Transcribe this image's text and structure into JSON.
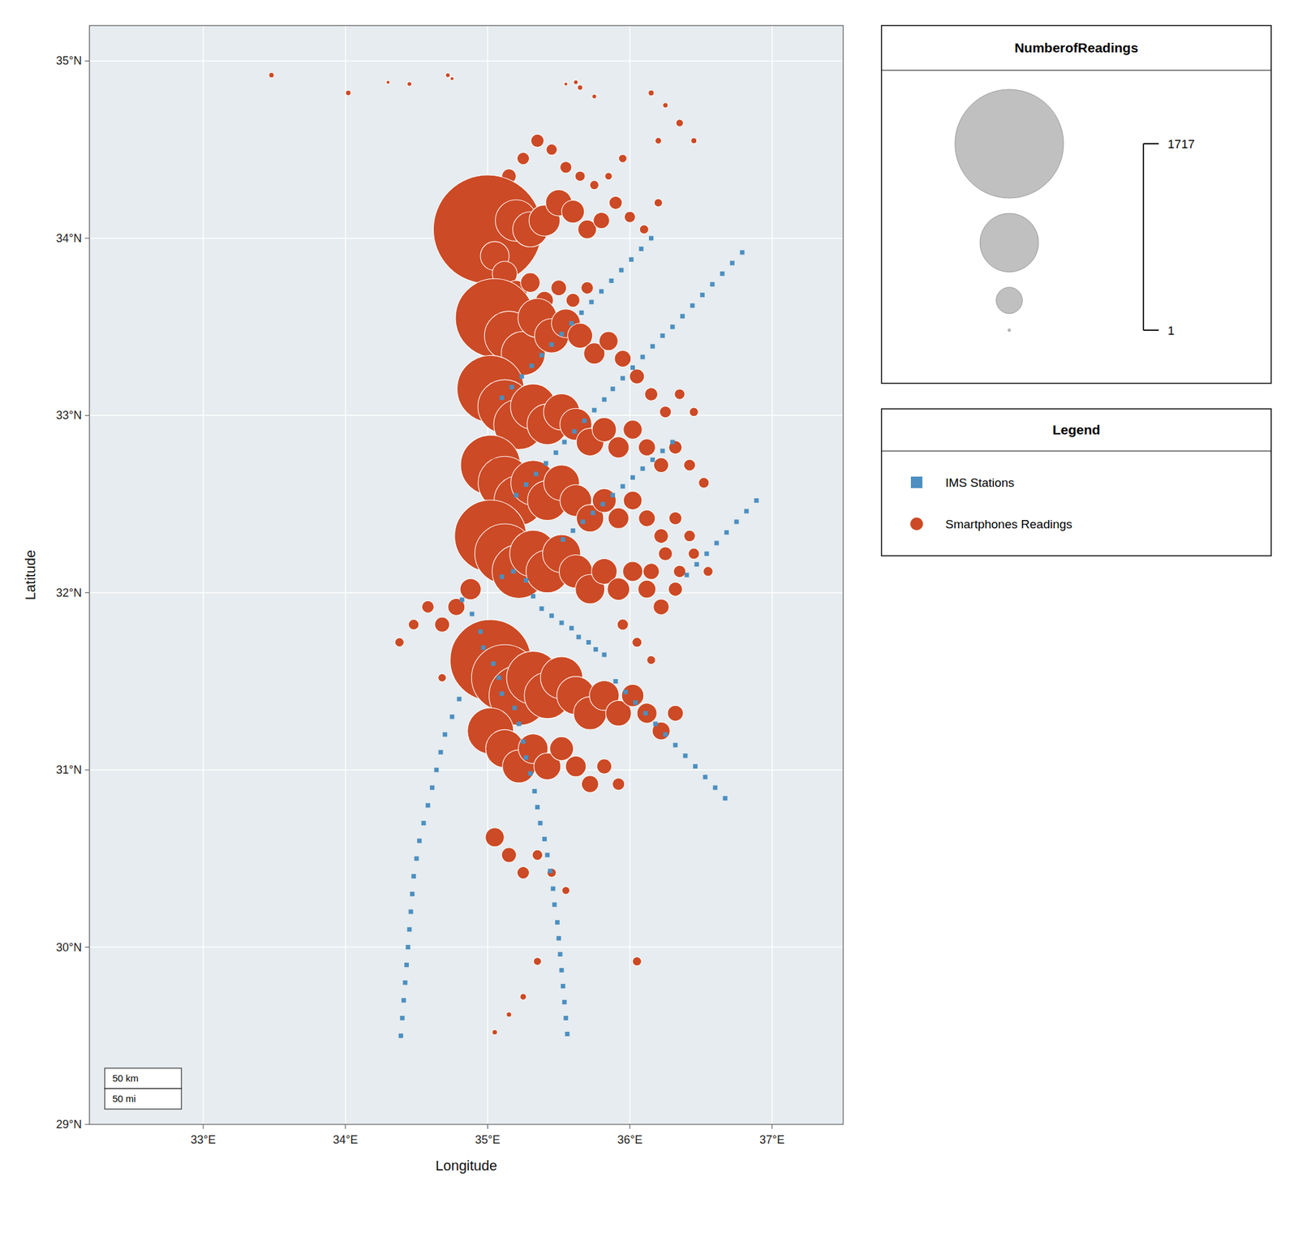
{
  "chart_data": {
    "type": "scatter",
    "xlabel": "Longitude",
    "ylabel": "Latitude",
    "xlim": [
      32.2,
      37.5
    ],
    "ylim": [
      29.0,
      35.2
    ],
    "xticks": [
      {
        "value": 33,
        "label": "33°E"
      },
      {
        "value": 34,
        "label": "34°E"
      },
      {
        "value": 35,
        "label": "35°E"
      },
      {
        "value": 36,
        "label": "36°E"
      },
      {
        "value": 37,
        "label": "37°E"
      }
    ],
    "yticks": [
      {
        "value": 29,
        "label": "29°N"
      },
      {
        "value": 30,
        "label": "30°N"
      },
      {
        "value": 31,
        "label": "31°N"
      },
      {
        "value": 32,
        "label": "32°N"
      },
      {
        "value": 33,
        "label": "33°N"
      },
      {
        "value": 34,
        "label": "34°N"
      },
      {
        "value": 35,
        "label": "35°N"
      }
    ],
    "grid": true,
    "legend_title": "Legend",
    "annotations": [
      "50 km",
      "50 mi"
    ],
    "size_legend": {
      "title": "NumberofReadings",
      "values": [
        1717,
        500,
        100,
        1
      ],
      "labels": [
        "1717",
        null,
        null,
        "1"
      ]
    },
    "series": [
      {
        "name": "Smartphones Readings",
        "color": "#CC4A25",
        "marker": "circle",
        "x": [
          34.45,
          34.75,
          35.55,
          35.65,
          35.75,
          36.15,
          36.25,
          36.35,
          36.45,
          36.2,
          35.95,
          35.85,
          35.75,
          35.65,
          35.55,
          35.45,
          35.35,
          35.25,
          35.15,
          35.05,
          35.0,
          35.2,
          35.3,
          35.4,
          35.5,
          35.6,
          35.7,
          35.8,
          35.9,
          36.0,
          36.1,
          36.2,
          35.05,
          35.12,
          35.2,
          35.3,
          35.4,
          35.5,
          35.6,
          35.7,
          35.05,
          35.15,
          35.25,
          35.35,
          35.45,
          35.55,
          35.65,
          35.75,
          35.85,
          35.95,
          36.05,
          36.15,
          36.25,
          36.35,
          36.45,
          35.02,
          35.12,
          35.22,
          35.32,
          35.42,
          35.52,
          35.62,
          35.72,
          35.82,
          35.92,
          36.02,
          36.12,
          36.22,
          36.32,
          36.42,
          36.52,
          35.02,
          35.12,
          35.22,
          35.32,
          35.42,
          35.52,
          35.62,
          35.72,
          35.82,
          35.92,
          36.02,
          36.12,
          36.22,
          36.32,
          36.42,
          35.02,
          35.12,
          35.22,
          35.32,
          35.42,
          35.52,
          35.62,
          35.72,
          35.82,
          35.92,
          36.02,
          36.12,
          36.22,
          36.32,
          34.88,
          34.78,
          34.68,
          34.58,
          34.48,
          34.38,
          34.68,
          34.78,
          35.02,
          35.12,
          35.22,
          35.32,
          35.42,
          35.52,
          35.62,
          35.72,
          35.82,
          35.92,
          36.02,
          36.12,
          36.22,
          36.32,
          35.02,
          35.12,
          35.22,
          35.32,
          35.42,
          35.52,
          35.62,
          35.72,
          35.82,
          35.92,
          35.05,
          35.15,
          35.25,
          35.35,
          35.45,
          35.55,
          35.35,
          35.25,
          35.15,
          35.05,
          36.05,
          34.72,
          34.02,
          35.62,
          33.48,
          34.3,
          36.15,
          36.25,
          36.35,
          36.45,
          36.55,
          35.95,
          36.05,
          36.15
        ],
        "values": [
          34.87,
          34.9,
          34.87,
          34.85,
          34.8,
          34.82,
          34.75,
          34.65,
          34.55,
          34.55,
          34.45,
          34.35,
          34.3,
          34.35,
          34.4,
          34.5,
          34.55,
          34.45,
          34.35,
          34.3,
          34.05,
          34.1,
          34.05,
          34.1,
          34.2,
          34.15,
          34.05,
          34.1,
          34.2,
          34.12,
          34.05,
          34.2,
          33.9,
          33.8,
          33.7,
          33.75,
          33.65,
          33.72,
          33.65,
          33.72,
          33.55,
          33.45,
          33.35,
          33.55,
          33.45,
          33.52,
          33.45,
          33.35,
          33.42,
          33.32,
          33.22,
          33.12,
          33.02,
          33.12,
          33.02,
          33.15,
          33.05,
          32.95,
          33.05,
          32.95,
          33.02,
          32.95,
          32.85,
          32.92,
          32.82,
          32.92,
          32.82,
          32.72,
          32.82,
          32.72,
          32.62,
          32.72,
          32.62,
          32.52,
          32.62,
          32.52,
          32.62,
          32.52,
          32.42,
          32.52,
          32.42,
          32.52,
          32.42,
          32.32,
          32.42,
          32.32,
          32.32,
          32.22,
          32.12,
          32.22,
          32.12,
          32.22,
          32.12,
          32.02,
          32.12,
          32.02,
          32.12,
          32.02,
          31.92,
          32.02,
          32.02,
          31.92,
          31.82,
          31.92,
          31.82,
          31.72,
          31.52,
          31.62,
          31.62,
          31.52,
          31.42,
          31.52,
          31.42,
          31.52,
          31.42,
          31.32,
          31.42,
          31.32,
          31.42,
          31.32,
          31.22,
          31.32,
          31.22,
          31.12,
          31.02,
          31.12,
          31.02,
          31.12,
          31.02,
          30.92,
          31.02,
          30.92,
          30.62,
          30.52,
          30.42,
          30.52,
          30.42,
          30.32,
          29.92,
          29.72,
          29.62,
          29.52,
          29.92,
          34.92,
          34.82,
          34.88,
          34.92,
          34.88,
          32.12,
          32.22,
          32.12,
          32.22,
          32.12,
          31.82,
          31.72,
          31.62
        ],
        "sizes": [
          3,
          2,
          2,
          4,
          3,
          5,
          4,
          8,
          5,
          6,
          10,
          8,
          12,
          15,
          20,
          18,
          25,
          22,
          30,
          45,
          1717,
          250,
          180,
          140,
          100,
          75,
          50,
          38,
          25,
          18,
          12,
          10,
          120,
          90,
          70,
          55,
          45,
          35,
          28,
          22,
          900,
          350,
          280,
          220,
          170,
          120,
          90,
          65,
          52,
          40,
          32,
          25,
          20,
          16,
          12,
          650,
          420,
          370,
          300,
          240,
          190,
          148,
          110,
          85,
          65,
          52,
          42,
          32,
          26,
          20,
          16,
          520,
          410,
          360,
          290,
          230,
          185,
          145,
          108,
          82,
          62,
          50,
          40,
          30,
          24,
          19,
          750,
          520,
          420,
          320,
          265,
          210,
          160,
          125,
          95,
          72,
          58,
          46,
          36,
          29,
          65,
          42,
          32,
          22,
          16,
          12,
          10,
          14,
          950,
          640,
          520,
          410,
          310,
          260,
          210,
          158,
          128,
          95,
          72,
          58,
          46,
          36,
          310,
          210,
          158,
          128,
          105,
          82,
          62,
          42,
          32,
          22,
          52,
          32,
          22,
          16,
          12,
          9,
          9,
          6,
          4,
          4,
          12,
          3,
          4,
          3,
          4,
          2,
          38,
          28,
          22,
          18,
          14,
          18,
          14,
          11
        ]
      },
      {
        "name": "IMS Stations",
        "color": "#4C8FC0",
        "marker": "square",
        "x": [
          34.82,
          34.89,
          34.95,
          34.97,
          35.04,
          35.08,
          35.1,
          35.19,
          35.22,
          35.25,
          35.27,
          35.3,
          35.33,
          35.35,
          35.37,
          35.4,
          35.42,
          35.44,
          35.46,
          35.47,
          35.49,
          35.5,
          35.51,
          35.52,
          35.53,
          35.54,
          35.55,
          35.56,
          35.1,
          35.18,
          35.27,
          35.32,
          35.38,
          35.45,
          35.52,
          35.59,
          35.64,
          35.71,
          35.76,
          35.82,
          35.53,
          35.6,
          35.67,
          35.74,
          35.81,
          35.88,
          35.95,
          36.02,
          36.09,
          36.16,
          36.23,
          36.3,
          35.2,
          35.27,
          35.34,
          35.41,
          35.48,
          35.54,
          35.61,
          35.68,
          35.75,
          35.82,
          35.88,
          35.95,
          36.02,
          36.09,
          36.16,
          36.23,
          35.1,
          35.17,
          35.24,
          35.31,
          35.38,
          35.45,
          35.52,
          35.59,
          35.66,
          35.73,
          35.8,
          35.87,
          35.94,
          36.01,
          36.08,
          36.15,
          34.8,
          34.75,
          34.7,
          34.67,
          34.64,
          34.61,
          34.58,
          34.55,
          34.52,
          34.5,
          34.48,
          34.47,
          34.46,
          34.45,
          34.44,
          34.43,
          34.42,
          34.41,
          34.4,
          34.39,
          35.9,
          35.97,
          36.04,
          36.11,
          36.18,
          36.25,
          36.32,
          36.39,
          36.46,
          36.53,
          36.6,
          36.67,
          36.4,
          36.47,
          36.54,
          36.61,
          36.68,
          36.75,
          36.82,
          36.89,
          36.3,
          36.37,
          36.44,
          36.51,
          36.58,
          36.65,
          36.72,
          36.79
        ],
        "values": [
          31.96,
          31.88,
          31.78,
          31.69,
          31.6,
          31.52,
          31.43,
          31.35,
          31.26,
          31.16,
          31.07,
          30.98,
          30.88,
          30.79,
          30.7,
          30.61,
          30.52,
          30.43,
          30.33,
          30.24,
          30.14,
          30.05,
          29.96,
          29.87,
          29.78,
          29.69,
          29.6,
          29.51,
          32.09,
          32.12,
          32.07,
          31.98,
          31.91,
          31.87,
          31.83,
          31.8,
          31.75,
          31.72,
          31.68,
          31.65,
          32.3,
          32.35,
          32.4,
          32.45,
          32.5,
          32.55,
          32.6,
          32.65,
          32.7,
          32.75,
          32.8,
          32.85,
          32.55,
          32.61,
          32.67,
          32.73,
          32.79,
          32.85,
          32.91,
          32.97,
          33.03,
          33.09,
          33.15,
          33.21,
          33.27,
          33.33,
          33.39,
          33.45,
          33.1,
          33.16,
          33.22,
          33.28,
          33.34,
          33.4,
          33.46,
          33.52,
          33.58,
          33.64,
          33.7,
          33.76,
          33.82,
          33.88,
          33.94,
          34.0,
          31.4,
          31.3,
          31.2,
          31.1,
          31.0,
          30.9,
          30.8,
          30.7,
          30.6,
          30.5,
          30.4,
          30.3,
          30.2,
          30.1,
          30.0,
          29.9,
          29.8,
          29.7,
          29.6,
          29.5,
          31.5,
          31.44,
          31.38,
          31.32,
          31.26,
          31.2,
          31.14,
          31.08,
          31.02,
          30.96,
          30.9,
          30.84,
          32.1,
          32.16,
          32.22,
          32.28,
          32.34,
          32.4,
          32.46,
          32.52,
          33.5,
          33.56,
          33.62,
          33.68,
          33.74,
          33.8,
          33.86,
          33.92
        ]
      }
    ]
  }
}
